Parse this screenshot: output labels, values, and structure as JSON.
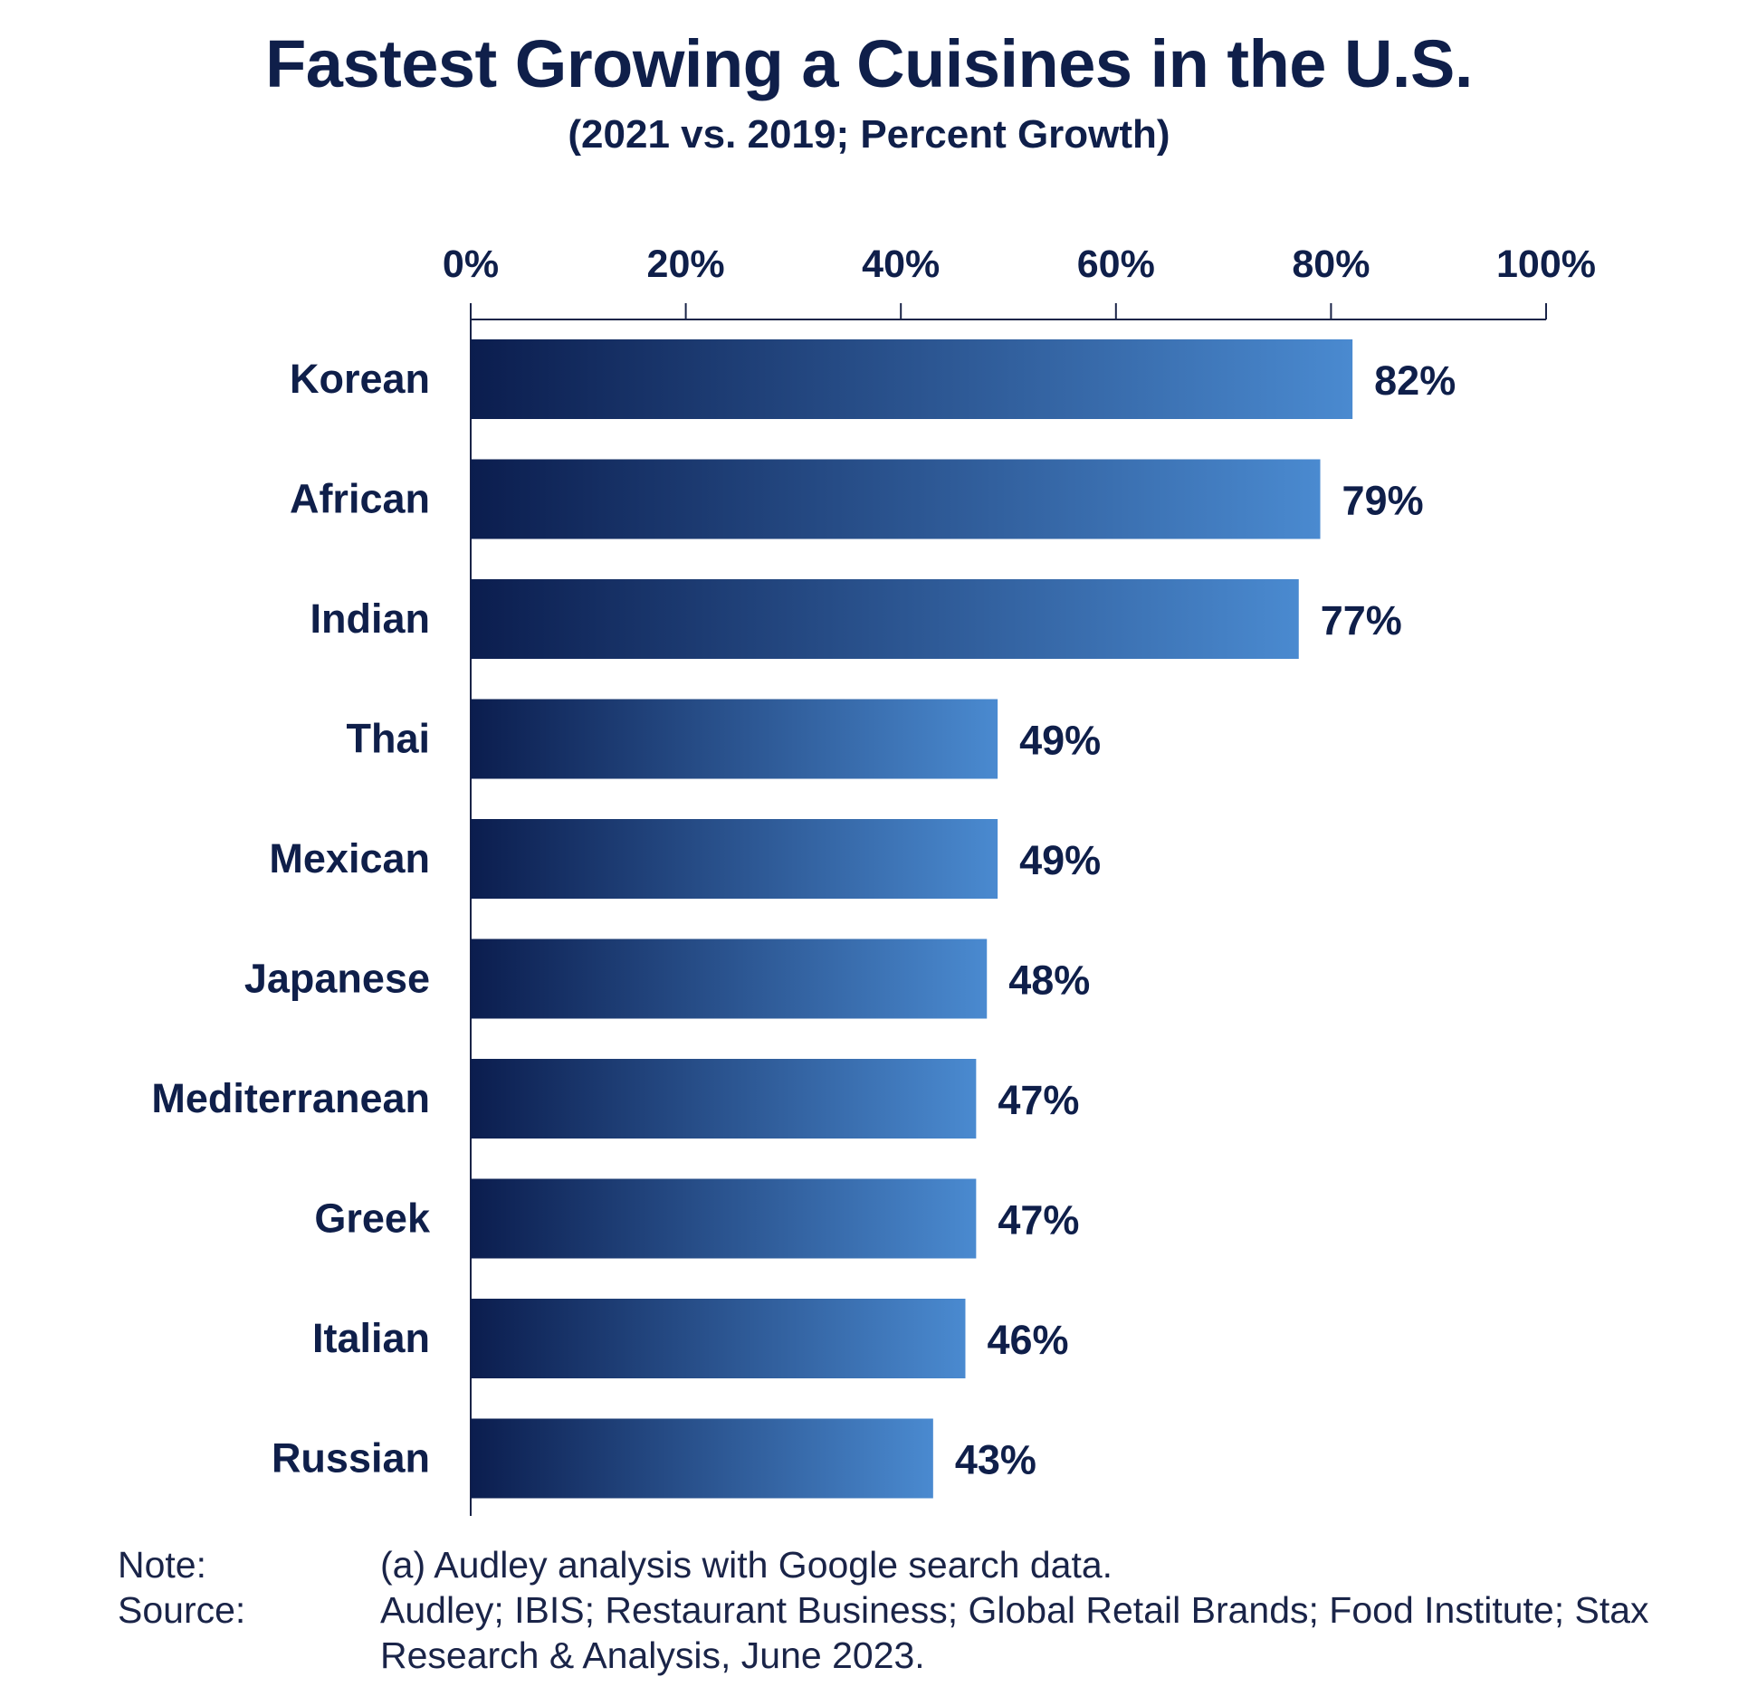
{
  "title": "Fastest Growing a Cuisines in the U.S.",
  "subtitle": "(2021 vs. 2019; Percent Growth)",
  "chart_data": {
    "type": "bar",
    "orientation": "horizontal",
    "categories": [
      "Korean",
      "African",
      "Indian",
      "Thai",
      "Mexican",
      "Japanese",
      "Mediterranean",
      "Greek",
      "Italian",
      "Russian"
    ],
    "values": [
      82,
      79,
      77,
      49,
      49,
      48,
      47,
      47,
      46,
      43
    ],
    "value_labels": [
      "82%",
      "79%",
      "77%",
      "49%",
      "49%",
      "48%",
      "47%",
      "47%",
      "46%",
      "43%"
    ],
    "xlim": [
      0,
      100
    ],
    "x_ticks": [
      0,
      20,
      40,
      60,
      80,
      100
    ],
    "x_tick_labels": [
      "0%",
      "20%",
      "40%",
      "60%",
      "80%",
      "100%"
    ],
    "x_axis_position": "top",
    "grid": false,
    "colors": {
      "bar_start": "#0b1d4e",
      "bar_end": "#4a8ad0",
      "text": "#0f1f4a",
      "axis": "#1a2448"
    }
  },
  "notes": {
    "note_label": "Note:",
    "note_text": "(a) Audley analysis with Google search data.",
    "source_label": "Source:",
    "source_text": "Audley; IBIS; Restaurant Business; Global Retail Brands; Food Institute; Stax Research & Analysis, June 2023."
  }
}
